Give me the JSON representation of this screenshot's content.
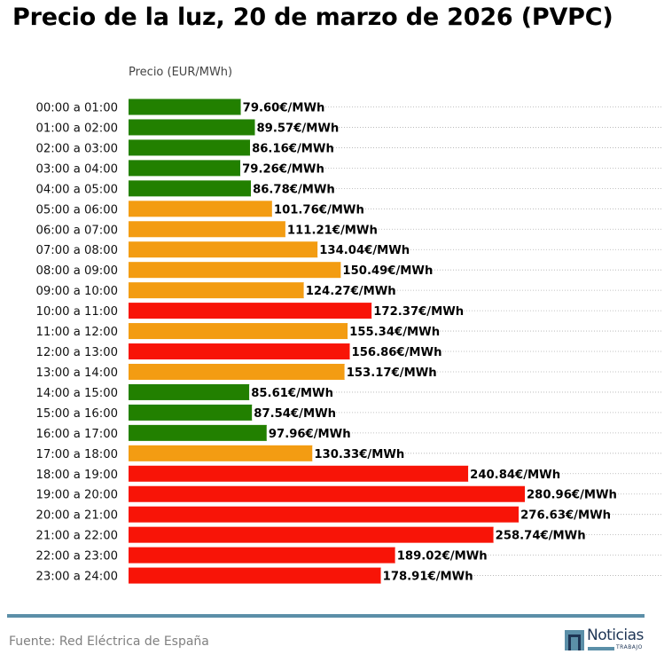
{
  "header": {
    "title": "Precio de la luz, 20 de marzo de 2026 (PVPC)"
  },
  "chart_data": {
    "type": "bar",
    "orientation": "horizontal",
    "title": "Precio de la luz, 20 de marzo de 2026 (PVPC)",
    "xlabel": "Precio (EUR/MWh)",
    "ylabel": "",
    "xlim": [
      0,
      300
    ],
    "grid": "dotted horizontal",
    "value_suffix": "€/MWh",
    "categories": [
      "00:00 a 01:00",
      "01:00 a 02:00",
      "02:00 a 03:00",
      "03:00 a 04:00",
      "04:00 a 05:00",
      "05:00 a 06:00",
      "06:00 a 07:00",
      "07:00 a 08:00",
      "08:00 a 09:00",
      "09:00 a 10:00",
      "10:00 a 11:00",
      "11:00 a 12:00",
      "12:00 a 13:00",
      "13:00 a 14:00",
      "14:00 a 15:00",
      "15:00 a 16:00",
      "16:00 a 17:00",
      "17:00 a 18:00",
      "18:00 a 19:00",
      "19:00 a 20:00",
      "20:00 a 21:00",
      "21:00 a 22:00",
      "22:00 a 23:00",
      "23:00 a 24:00"
    ],
    "values": [
      79.6,
      89.57,
      86.16,
      79.26,
      86.78,
      101.76,
      111.21,
      134.04,
      150.49,
      124.27,
      172.37,
      155.34,
      156.86,
      153.17,
      85.61,
      87.54,
      97.96,
      130.33,
      240.84,
      280.96,
      276.63,
      258.74,
      189.02,
      178.91
    ],
    "labels": [
      "79.60€/MWh",
      "89.57€/MWh",
      "86.16€/MWh",
      "79.26€/MWh",
      "86.78€/MWh",
      "101.76€/MWh",
      "111.21€/MWh",
      "134.04€/MWh",
      "150.49€/MWh",
      "124.27€/MWh",
      "172.37€/MWh",
      "155.34€/MWh",
      "156.86€/MWh",
      "153.17€/MWh",
      "85.61€/MWh",
      "87.54€/MWh",
      "97.96€/MWh",
      "130.33€/MWh",
      "240.84€/MWh",
      "280.96€/MWh",
      "276.63€/MWh",
      "258.74€/MWh",
      "189.02€/MWh",
      "178.91€/MWh"
    ],
    "levels": [
      "low",
      "low",
      "low",
      "low",
      "low",
      "mid",
      "mid",
      "mid",
      "mid",
      "mid",
      "high",
      "mid",
      "high",
      "mid",
      "low",
      "low",
      "low",
      "mid",
      "high",
      "high",
      "high",
      "high",
      "high",
      "high"
    ],
    "colors": {
      "low": "#228000",
      "mid": "#f39c12",
      "high": "#f81407"
    }
  },
  "footer": {
    "source": "Fuente: Red Eléctrica de España",
    "logo_word": "Noticias",
    "logo_sub": "TRABAJO"
  },
  "style": {
    "rule_color": "#5b8fa8",
    "grid_color": "#b0b0b0"
  }
}
